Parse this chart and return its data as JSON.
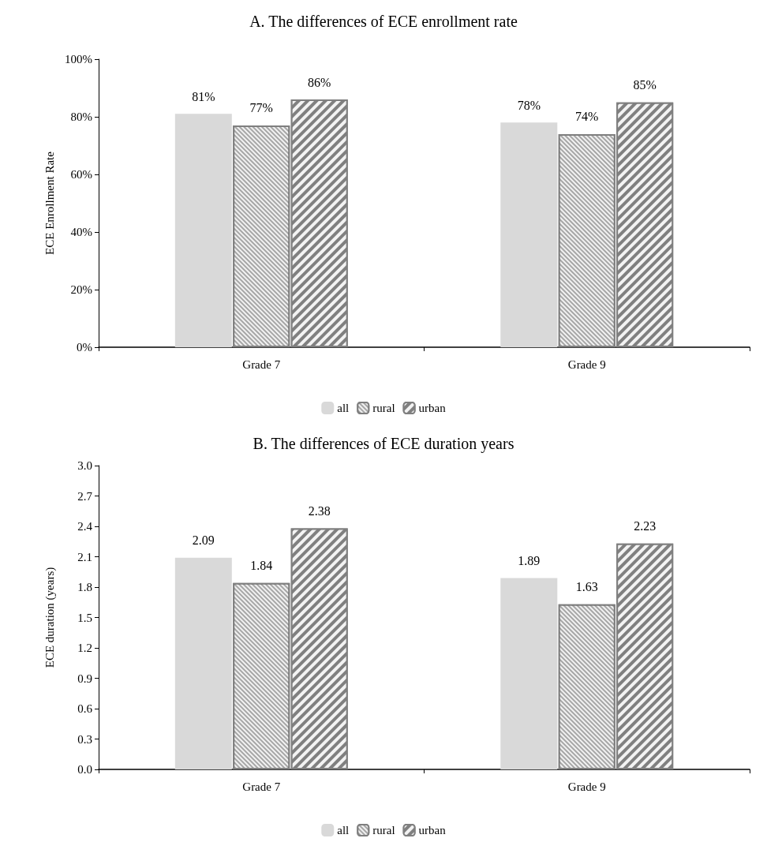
{
  "chart_data": [
    {
      "type": "bar",
      "title": "A. The differences of ECE enrollment rate",
      "ylabel": "ECE Enrollment Rate",
      "categories": [
        "Grade 7",
        "Grade 9"
      ],
      "series": [
        {
          "name": "all",
          "color": "#d9d9d9",
          "values": [
            81,
            78
          ],
          "value_labels": [
            "81%",
            "78%"
          ]
        },
        {
          "name": "rural",
          "color": "#a6a6a6",
          "values": [
            77,
            74
          ],
          "value_labels": [
            "77%",
            "74%"
          ]
        },
        {
          "name": "urban",
          "color": "#808080",
          "values": [
            86,
            85
          ],
          "value_labels": [
            "86%",
            "85%"
          ]
        }
      ],
      "ylim": [
        0,
        100
      ],
      "yticks": [
        {
          "value": 0,
          "label": "0%"
        },
        {
          "value": 20,
          "label": "20%"
        },
        {
          "value": 40,
          "label": "40%"
        },
        {
          "value": 60,
          "label": "60%"
        },
        {
          "value": 80,
          "label": "80%"
        },
        {
          "value": 100,
          "label": "100%"
        }
      ],
      "grid": false,
      "legend": "bottom"
    },
    {
      "type": "bar",
      "title": "B. The differences of ECE duration years",
      "ylabel": "ECE duration (years)",
      "categories": [
        "Grade 7",
        "Grade 9"
      ],
      "series": [
        {
          "name": "all",
          "color": "#d9d9d9",
          "values": [
            2.09,
            1.89
          ]
        },
        {
          "name": "rural",
          "color": "#a6a6a6",
          "values": [
            1.84,
            1.63
          ]
        },
        {
          "name": "urban",
          "color": "#808080",
          "values": [
            2.38,
            2.23
          ]
        }
      ],
      "ylim": [
        0,
        3
      ],
      "yticks": [
        {
          "value": 0,
          "label": "0.0"
        },
        {
          "value": 0.3,
          "label": "0.3"
        },
        {
          "value": 0.6,
          "label": "0.6"
        },
        {
          "value": 0.9,
          "label": "0.9"
        },
        {
          "value": 1.2,
          "label": "1.2"
        },
        {
          "value": 1.5,
          "label": "1.5"
        },
        {
          "value": 1.8,
          "label": "1.8"
        },
        {
          "value": 2.1,
          "label": "2.1"
        },
        {
          "value": 2.4,
          "label": "2.4"
        },
        {
          "value": 2.7,
          "label": "2.7"
        },
        {
          "value": 3,
          "label": "3.0"
        }
      ],
      "data_labels": true,
      "grid": false,
      "legend": "bottom"
    }
  ]
}
